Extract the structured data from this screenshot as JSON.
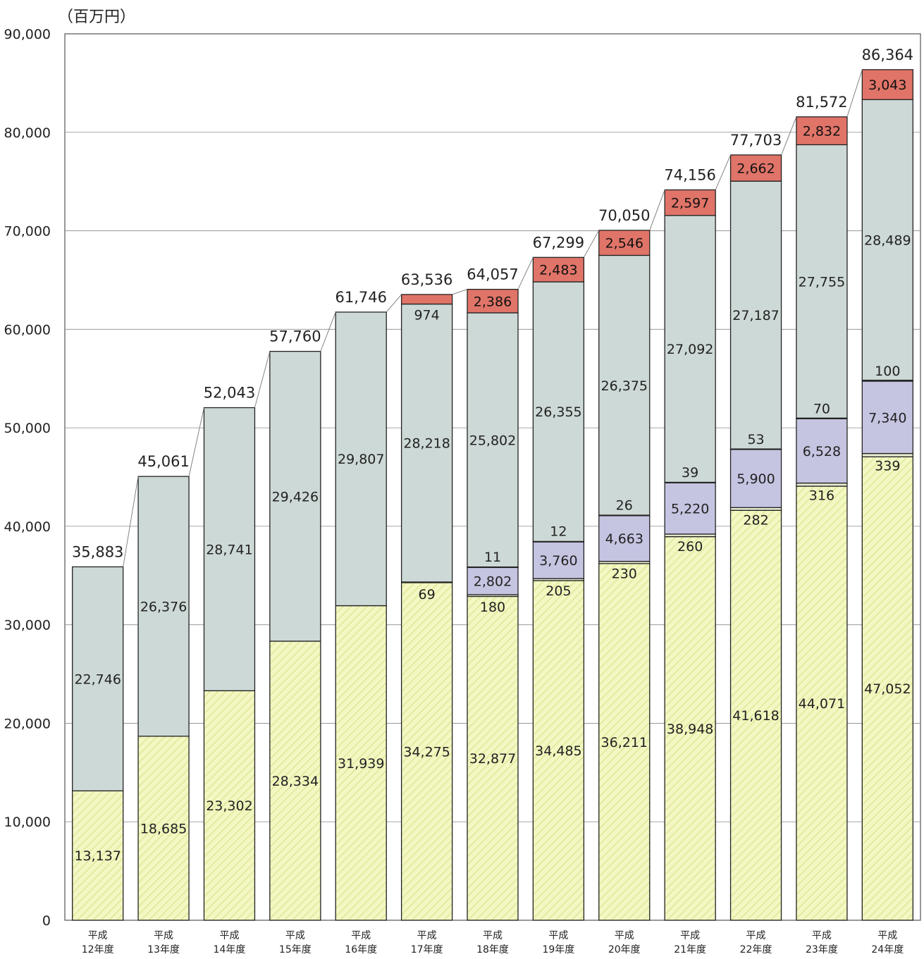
{
  "chart_data": {
    "type": "bar",
    "stacked": true,
    "unit_label": "（百万円）",
    "title": "",
    "xlabel": "",
    "ylabel": "",
    "ylim": [
      0,
      90000
    ],
    "y_ticks": [
      0,
      10000,
      20000,
      30000,
      40000,
      50000,
      60000,
      70000,
      80000,
      90000
    ],
    "y_tick_labels": [
      "0",
      "10,000",
      "20,000",
      "30,000",
      "40,000",
      "50,000",
      "60,000",
      "70,000",
      "80,000",
      "90,000"
    ],
    "grid": true,
    "legend": "none",
    "categories": [
      [
        "平成",
        "12年度"
      ],
      [
        "平成",
        "13年度"
      ],
      [
        "平成",
        "14年度"
      ],
      [
        "平成",
        "15年度"
      ],
      [
        "平成",
        "16年度"
      ],
      [
        "平成",
        "17年度"
      ],
      [
        "平成",
        "18年度"
      ],
      [
        "平成",
        "19年度"
      ],
      [
        "平成",
        "20年度"
      ],
      [
        "平成",
        "21年度"
      ],
      [
        "平成",
        "22年度"
      ],
      [
        "平成",
        "23年度"
      ],
      [
        "平成",
        "24年度"
      ]
    ],
    "series": [
      {
        "color": "#f0f5b4",
        "hatched": true,
        "values": [
          13137,
          18685,
          23302,
          28334,
          31939,
          34275,
          32877,
          34485,
          36211,
          38948,
          41618,
          44071,
          47052
        ],
        "labels": [
          "13,137",
          "18,685",
          "23,302",
          "28,334",
          "31,939",
          "34,275",
          "32,877",
          "34,485",
          "36,211",
          "38,948",
          "41,618",
          "44,071",
          "47,052"
        ]
      },
      {
        "color": "#e8ecd0",
        "values": [
          null,
          null,
          null,
          null,
          null,
          69,
          180,
          205,
          230,
          260,
          282,
          316,
          339
        ],
        "labels": [
          "",
          "",
          "",
          "",
          "",
          "69",
          "180",
          "205",
          "230",
          "260",
          "282",
          "316",
          "339"
        ]
      },
      {
        "color": "#c5c5e2",
        "values": [
          null,
          null,
          null,
          null,
          null,
          null,
          2802,
          3760,
          4663,
          5220,
          5900,
          6528,
          7340
        ],
        "labels": [
          "",
          "",
          "",
          "",
          "",
          "",
          "2,802",
          "3,760",
          "4,663",
          "5,220",
          "5,900",
          "6,528",
          "7,340"
        ]
      },
      {
        "color": "#eef0e4",
        "values": [
          null,
          null,
          null,
          null,
          null,
          null,
          11,
          12,
          26,
          39,
          53,
          70,
          100
        ],
        "labels": [
          "",
          "",
          "",
          "",
          "",
          "",
          "11",
          "12",
          "26",
          "39",
          "53",
          "70",
          "100"
        ]
      },
      {
        "color": "#cdd9d6",
        "values": [
          22746,
          26376,
          28741,
          29426,
          29807,
          28218,
          25802,
          26355,
          26375,
          27092,
          27187,
          27755,
          28489
        ],
        "labels": [
          "22,746",
          "26,376",
          "28,741",
          "29,426",
          "29,807",
          "28,218",
          "25,802",
          "26,355",
          "26,375",
          "27,092",
          "27,187",
          "27,755",
          "28,489"
        ]
      },
      {
        "color": "#e07468",
        "values": [
          null,
          null,
          null,
          null,
          null,
          974,
          2386,
          2483,
          2546,
          2597,
          2662,
          2832,
          3043
        ],
        "labels": [
          "",
          "",
          "",
          "",
          "",
          "974",
          "2,386",
          "2,483",
          "2,546",
          "2,597",
          "2,662",
          "2,832",
          "3,043"
        ]
      }
    ],
    "totals": [
      35883,
      45061,
      52043,
      57760,
      61746,
      63536,
      64057,
      67299,
      70050,
      74156,
      77703,
      81572,
      86364
    ],
    "total_labels": [
      "35,883",
      "45,061",
      "52,043",
      "57,760",
      "61,746",
      "63,536",
      "64,057",
      "67,299",
      "70,050",
      "74,156",
      "77,703",
      "81,572",
      "86,364"
    ]
  }
}
